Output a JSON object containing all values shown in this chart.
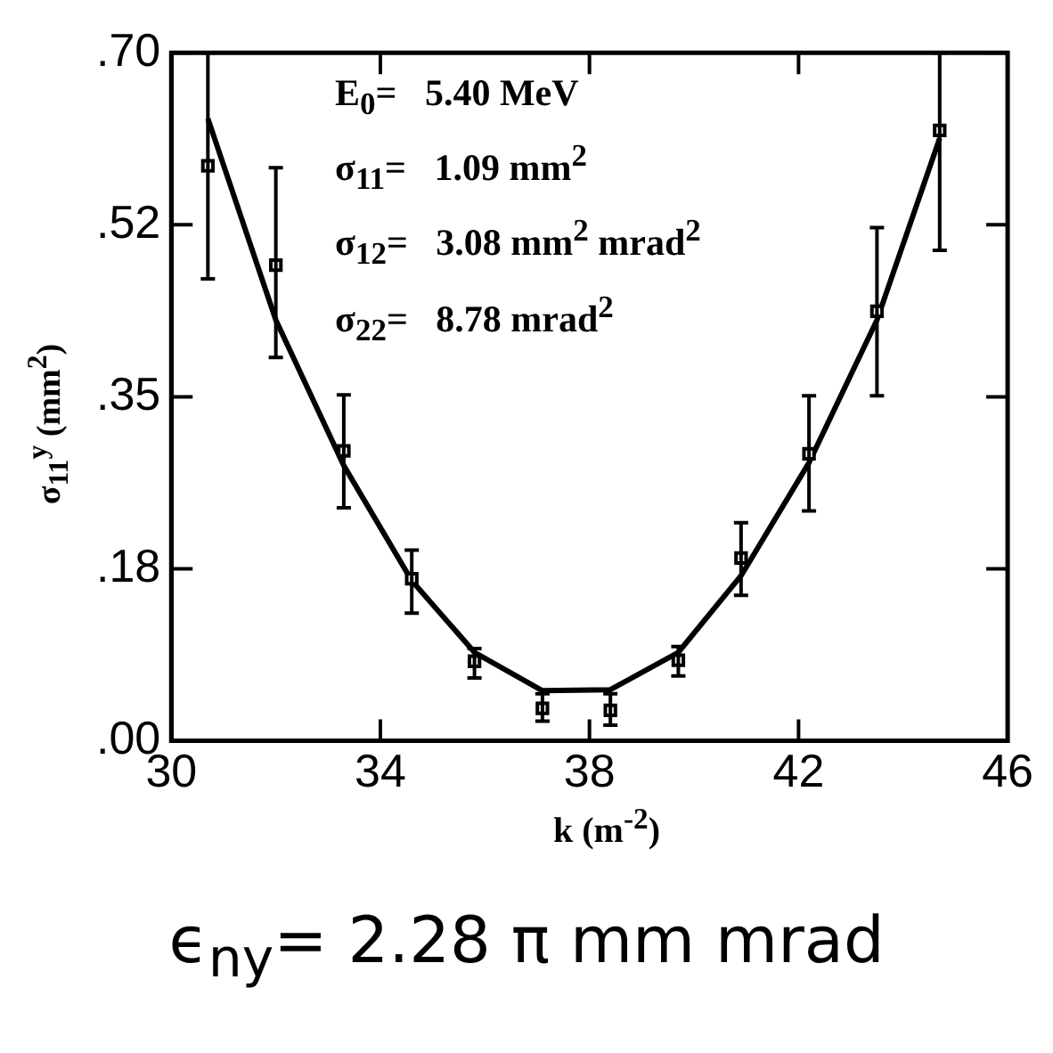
{
  "chart_data": {
    "type": "scatter",
    "xlabel": "k (m$^{-2}$)",
    "ylabel": "σ$_{11}$$^{y}$ (mm$^{2}$)",
    "x": [
      30.7,
      32.0,
      33.3,
      34.6,
      35.8,
      37.1,
      38.4,
      39.7,
      40.9,
      42.2,
      43.5,
      44.7
    ],
    "series": [
      {
        "color": "#000000",
        "values": [
          0.585,
          0.484,
          0.295,
          0.165,
          0.081,
          0.033,
          0.031,
          0.082,
          0.186,
          0.292,
          0.437,
          0.621
        ],
        "errors": [
          [
            0.47,
            0.7
          ],
          [
            0.39,
            0.583
          ],
          [
            0.237,
            0.352
          ],
          [
            0.13,
            0.194
          ],
          [
            0.064,
            0.094
          ],
          [
            0.02,
            0.048
          ],
          [
            0.016,
            0.048
          ],
          [
            0.066,
            0.096
          ],
          [
            0.148,
            0.222
          ],
          [
            0.234,
            0.351
          ],
          [
            0.351,
            0.522
          ],
          [
            0.499,
            0.7
          ]
        ]
      },
      {
        "type": "line",
        "color": "#000000",
        "marker": "none",
        "values": [
          0.633,
          0.428,
          0.28,
          0.163,
          0.09,
          0.051,
          0.052,
          0.09,
          0.168,
          0.283,
          0.428,
          0.613
        ]
      }
    ],
    "marker": "square",
    "grid": false,
    "xlim": [
      30,
      46
    ],
    "xticks": [
      30,
      34,
      38,
      42,
      46
    ],
    "ylim": [
      0,
      0.7
    ],
    "yticks": [
      {
        "value": 0,
        "label": ".00"
      },
      {
        "value": 0.175,
        "label": ".18"
      },
      {
        "value": 0.35,
        "label": ".35"
      },
      {
        "value": 0.525,
        "label": ".52"
      },
      {
        "value": 0.7,
        "label": ".70"
      }
    ],
    "annotations": [
      "E$_{0}$=   5.40 MeV",
      "σ$_{11}$=   1.09 mm$^{2}$",
      "σ$_{12}$=   3.08 mm$^{2}$ mrad$^{2}$",
      "σ$_{22}$=   8.78 mrad$^{2}$",
      "ϵ$_{ny}$= 2.28 π mm mrad"
    ]
  }
}
